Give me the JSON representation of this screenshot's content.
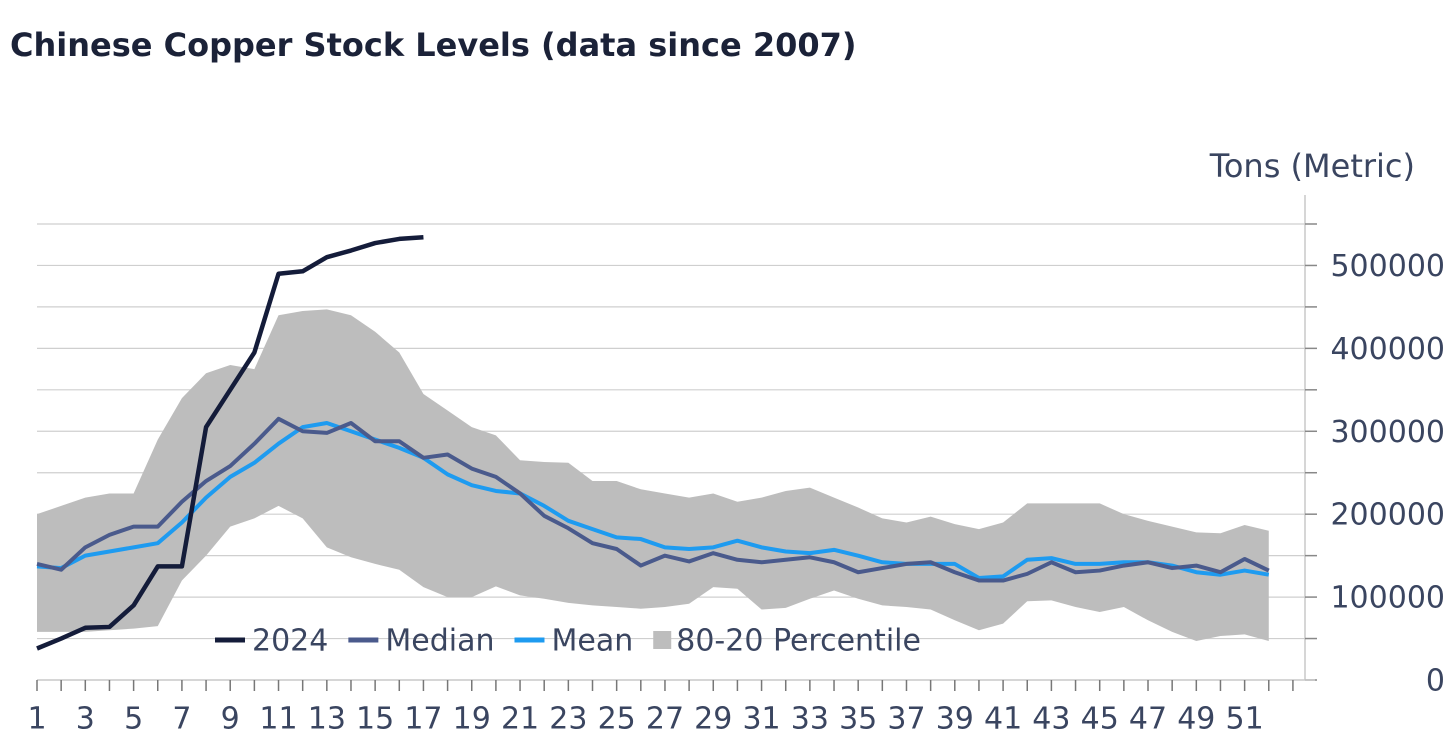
{
  "chart_data": {
    "type": "line",
    "title": "Chinese Copper Stock Levels (data since 2007)",
    "y_label": "Tons (Metric)",
    "x": [
      1,
      2,
      3,
      4,
      5,
      6,
      7,
      8,
      9,
      10,
      11,
      12,
      13,
      14,
      15,
      16,
      17,
      18,
      19,
      20,
      21,
      22,
      23,
      24,
      25,
      26,
      27,
      28,
      29,
      30,
      31,
      32,
      33,
      34,
      35,
      36,
      37,
      38,
      39,
      40,
      41,
      42,
      43,
      44,
      45,
      46,
      47,
      48,
      49,
      50,
      51,
      52
    ],
    "xlim": [
      1,
      53.5
    ],
    "xticks": [
      1,
      3,
      5,
      7,
      9,
      11,
      13,
      15,
      17,
      19,
      21,
      23,
      25,
      27,
      29,
      31,
      33,
      35,
      37,
      39,
      41,
      43,
      45,
      47,
      49,
      51
    ],
    "xminorticks": [
      1,
      2,
      3,
      4,
      5,
      6,
      7,
      8,
      9,
      10,
      11,
      12,
      13,
      14,
      15,
      16,
      17,
      18,
      19,
      20,
      21,
      22,
      23,
      24,
      25,
      26,
      27,
      28,
      29,
      30,
      31,
      32,
      33,
      34,
      35,
      36,
      37,
      38,
      39,
      40,
      41,
      42,
      43,
      44,
      45,
      46,
      47,
      48,
      49,
      50,
      51,
      52,
      53
    ],
    "ylim": [
      0,
      550000
    ],
    "yticks": [
      0,
      100000,
      200000,
      300000,
      400000,
      500000
    ],
    "yminorticks": [
      50000,
      150000,
      250000,
      350000,
      450000,
      550000
    ],
    "grid": true,
    "legend": "bottom-left",
    "series": [
      {
        "name": "2024",
        "color": "#141c3a",
        "values": [
          38000,
          50000,
          63000,
          64000,
          90000,
          137000,
          137000,
          305000,
          350000,
          395000,
          490000,
          493000,
          510000,
          518000,
          527000,
          532000,
          534000,
          null,
          null,
          null,
          null,
          null,
          null,
          null,
          null,
          null,
          null,
          null,
          null,
          null,
          null,
          null,
          null,
          null,
          null,
          null,
          null,
          null,
          null,
          null,
          null,
          null,
          null,
          null,
          null,
          null,
          null,
          null,
          null,
          null,
          null,
          null
        ]
      },
      {
        "name": "Median",
        "color": "#4a5a8c",
        "values": [
          140000,
          133000,
          160000,
          175000,
          185000,
          185000,
          215000,
          240000,
          258000,
          285000,
          315000,
          300000,
          298000,
          310000,
          288000,
          288000,
          268000,
          272000,
          255000,
          245000,
          225000,
          198000,
          183000,
          165000,
          158000,
          138000,
          150000,
          143000,
          153000,
          145000,
          142000,
          145000,
          148000,
          142000,
          130000,
          135000,
          140000,
          142000,
          130000,
          120000,
          120000,
          128000,
          142000,
          130000,
          132000,
          138000,
          142000,
          135000,
          138000,
          130000,
          146000,
          132000
        ]
      },
      {
        "name": "Mean",
        "color": "#1e9bf0",
        "values": [
          137000,
          135000,
          150000,
          155000,
          160000,
          165000,
          190000,
          220000,
          245000,
          262000,
          285000,
          305000,
          310000,
          300000,
          290000,
          280000,
          268000,
          248000,
          235000,
          228000,
          225000,
          210000,
          192000,
          182000,
          172000,
          170000,
          160000,
          158000,
          160000,
          168000,
          160000,
          155000,
          153000,
          157000,
          150000,
          142000,
          140000,
          140000,
          140000,
          123000,
          125000,
          145000,
          147000,
          140000,
          140000,
          142000,
          142000,
          138000,
          130000,
          127000,
          132000,
          127000
        ]
      }
    ],
    "band": {
      "name": "80-20 Percentile",
      "color": "#bdbdbd",
      "upper": [
        200000,
        210000,
        220000,
        225000,
        225000,
        290000,
        340000,
        370000,
        380000,
        375000,
        440000,
        445000,
        447000,
        440000,
        420000,
        395000,
        345000,
        325000,
        305000,
        295000,
        265000,
        263000,
        262000,
        240000,
        240000,
        230000,
        225000,
        220000,
        225000,
        215000,
        220000,
        228000,
        232000,
        220000,
        208000,
        195000,
        190000,
        197000,
        188000,
        182000,
        190000,
        213000,
        213000,
        213000,
        213000,
        200000,
        192000,
        185000,
        178000,
        177000,
        187000,
        180000
      ],
      "lower": [
        58000,
        58000,
        58000,
        60000,
        62000,
        65000,
        120000,
        150000,
        185000,
        195000,
        210000,
        195000,
        160000,
        148000,
        140000,
        133000,
        112000,
        100000,
        100000,
        113000,
        102000,
        98000,
        93000,
        90000,
        88000,
        86000,
        88000,
        92000,
        112000,
        110000,
        85000,
        87000,
        98000,
        108000,
        98000,
        90000,
        88000,
        85000,
        72000,
        60000,
        68000,
        95000,
        96000,
        88000,
        82000,
        88000,
        72000,
        58000,
        47000,
        53000,
        55000,
        47000
      ]
    }
  }
}
